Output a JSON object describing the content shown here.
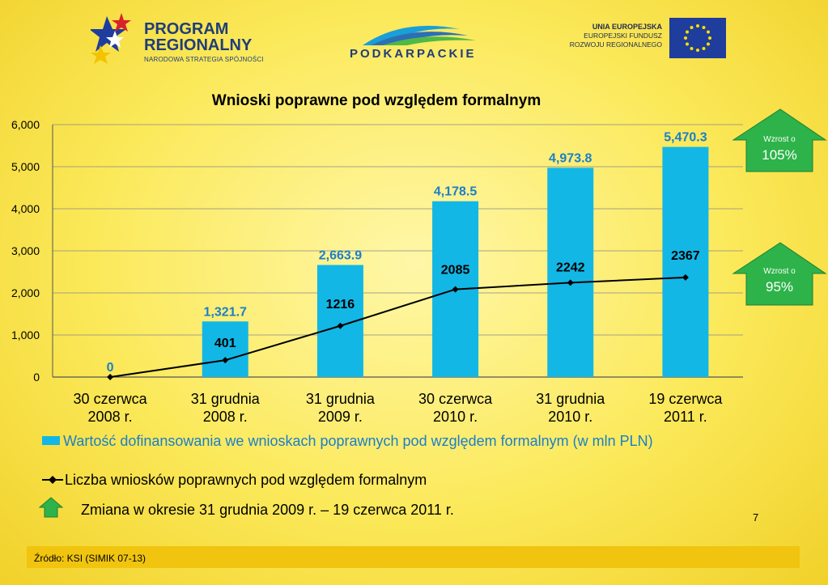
{
  "header": {
    "program_title_line1": "PROGRAM",
    "program_title_line2": "REGIONALNY",
    "program_subtitle": "NARODOWA STRATEGIA SPÓJNOŚCI",
    "region_name": "PODKARPACKIE",
    "eu_line1": "UNIA EUROPEJSKA",
    "eu_line2": "EUROPEJSKI FUNDUSZ",
    "eu_line3": "ROZWOJU REGIONALNEGO"
  },
  "chart_data": {
    "type": "bar",
    "title": "Wnioski poprawne pod względem formalnym",
    "categories": [
      [
        "30 czerwca",
        "2008 r."
      ],
      [
        "31 grudnia",
        "2008 r."
      ],
      [
        "31 grudnia",
        "2009 r."
      ],
      [
        "30 czerwca",
        "2010 r."
      ],
      [
        "31 grudnia",
        "2010 r."
      ],
      [
        "19  czerwca",
        "2011 r."
      ]
    ],
    "series": [
      {
        "name": "Wartość dofinansowania we wnioskach poprawnych pod względem formalnym (w mln PLN)",
        "type": "bar",
        "values": [
          0,
          1321.7,
          2663.9,
          4178.5,
          4973.8,
          5470.3
        ],
        "labels": [
          "0",
          "1,321.7",
          "2,663.9",
          "4,178.5",
          "4,973.8",
          "5,470.3"
        ],
        "color": "#12b7e6",
        "label_color": "#1a7fc9"
      },
      {
        "name": "Liczba wniosków poprawnych pod względem formalnym",
        "type": "line",
        "values": [
          0,
          401,
          1216,
          2085,
          2242,
          2367
        ],
        "labels": [
          "",
          "401",
          "1216",
          "2085",
          "2242",
          "2367"
        ],
        "color": "#000000"
      }
    ],
    "ylim": [
      0,
      6000
    ],
    "yticks": [
      0,
      1000,
      2000,
      3000,
      4000,
      5000,
      6000
    ],
    "ytick_labels": [
      "0",
      "1,000",
      "2,000",
      "3,000",
      "4,000",
      "5,000",
      "6,000"
    ],
    "grid": true,
    "legend_position": "bottom-left"
  },
  "callouts": [
    {
      "small": "Wzrost o",
      "big": "105%",
      "color": "#2db34a"
    },
    {
      "small": "Wzrost o",
      "big": "95%",
      "color": "#2db34a"
    }
  ],
  "change_text": "Zmiana w okresie 31 grudnia 2009 r. – 19 czerwca 2011 r.",
  "page_number": "7",
  "source": "Źródło: KSI (SIMIK 07-13)"
}
